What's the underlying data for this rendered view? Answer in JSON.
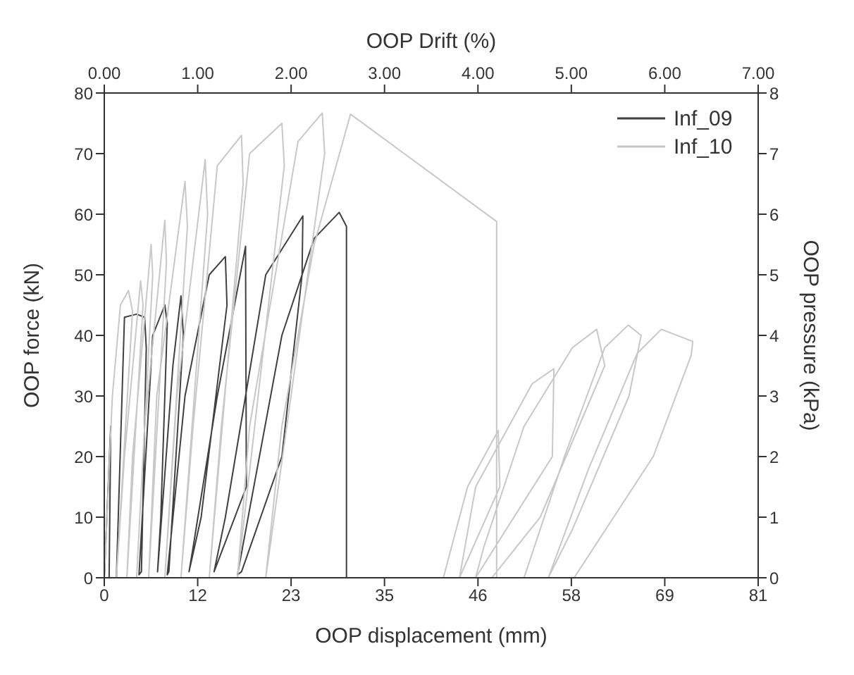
{
  "chart_data": {
    "type": "line",
    "xlabel": "OOP displacement (mm)",
    "ylabel": "OOP force (kN)",
    "x2label": "OOP Drift (%)",
    "y2label": "OOP pressure (kPa)",
    "xlim": [
      0,
      81
    ],
    "xticks": [
      0,
      {
        "value": 11.57,
        "label": "12"
      },
      {
        "value": 23.14,
        "label": "23"
      },
      {
        "value": 34.71,
        "label": "35"
      },
      {
        "value": 46.29,
        "label": "46"
      },
      {
        "value": 57.86,
        "label": "58"
      },
      {
        "value": 69.43,
        "label": "69"
      },
      81
    ],
    "x2lim": [
      0,
      7
    ],
    "x2ticks": [
      {
        "value": 0,
        "label": "0.00"
      },
      {
        "value": 1,
        "label": "1.00"
      },
      {
        "value": 2,
        "label": "2.00"
      },
      {
        "value": 3,
        "label": "3.00"
      },
      {
        "value": 4,
        "label": "4.00"
      },
      {
        "value": 5,
        "label": "5.00"
      },
      {
        "value": 6,
        "label": "6.00"
      },
      {
        "value": 7,
        "label": "7.00"
      }
    ],
    "ylim": [
      0,
      80
    ],
    "yticks": [
      0,
      10,
      20,
      30,
      40,
      50,
      60,
      70,
      80
    ],
    "y2lim": [
      0,
      8
    ],
    "y2ticks": [
      0,
      1,
      2,
      3,
      4,
      5,
      6,
      7,
      8
    ],
    "grid": false,
    "legend": "top right",
    "marker": "none",
    "line_style": "solid",
    "series": [
      {
        "name": "Inf_09",
        "color": "#404040",
        "x": [
          0,
          0.8,
          0.6,
          1.5,
          2.5,
          4,
          5,
          5.2,
          4.6,
          4.3,
          6,
          7.5,
          7.8,
          7,
          6.6,
          8.5,
          9.5,
          9.8,
          8,
          7.8,
          10,
          13,
          15,
          15.2,
          12,
          10.5,
          11,
          14,
          17.5,
          17.6,
          13.6,
          15,
          20,
          24.6,
          24.5,
          22,
          17,
          16.5,
          22,
          26,
          29.1,
          30,
          30
        ],
        "values": [
          0,
          25,
          0,
          0,
          43,
          43.5,
          43,
          38,
          1,
          0.5,
          40,
          45,
          42,
          10,
          1,
          35,
          46.5,
          40,
          1,
          0.5,
          30,
          50,
          53,
          45,
          10,
          1,
          5,
          30,
          54.7,
          15,
          1,
          10,
          50,
          59.7,
          50,
          20,
          1,
          0.5,
          40,
          56,
          60.3,
          58,
          0
        ]
      },
      {
        "name": "Inf_10",
        "color": "#c8c8c8",
        "x": [
          0,
          1,
          2,
          3,
          3.5,
          1.5,
          2.5,
          4.5,
          4.8,
          2.8,
          3.5,
          5.8,
          6,
          4,
          5,
          7.5,
          7.7,
          5.5,
          6.5,
          10,
          10.3,
          7.5,
          9,
          12.5,
          12.8,
          9.5,
          11,
          14,
          17,
          17.2,
          13,
          14.5,
          18,
          22,
          22.3,
          16.5,
          18,
          24,
          27,
          27.3,
          20,
          22,
          26,
          30.5,
          48.6,
          48.6,
          42,
          45,
          48.8,
          49,
          44,
          46,
          53,
          55.7,
          55.5,
          46,
          47,
          52,
          58,
          61,
          62,
          54,
          48,
          52,
          57,
          62,
          64.9,
          66.5,
          65,
          58,
          55,
          60,
          66,
          69,
          72.9,
          72.7,
          68,
          58.2
        ],
        "values": [
          0,
          30,
          45,
          47.4,
          44,
          0,
          20,
          49,
          45,
          0,
          20,
          55,
          50,
          0,
          25,
          59,
          52,
          0,
          30,
          65.4,
          58,
          0,
          30,
          69,
          60,
          0,
          25,
          68,
          73,
          65,
          0,
          25,
          70,
          75,
          68,
          0,
          25,
          72,
          76.7,
          70,
          0,
          25,
          55,
          76.5,
          58.8,
          0,
          0,
          15,
          24.3,
          15,
          0,
          15,
          32,
          34.5,
          20,
          0,
          5,
          25,
          38,
          41,
          35,
          10,
          0,
          0,
          20,
          38,
          41.7,
          40,
          30,
          8,
          0,
          18,
          37,
          41,
          39,
          36.7,
          20,
          0
        ]
      }
    ]
  }
}
